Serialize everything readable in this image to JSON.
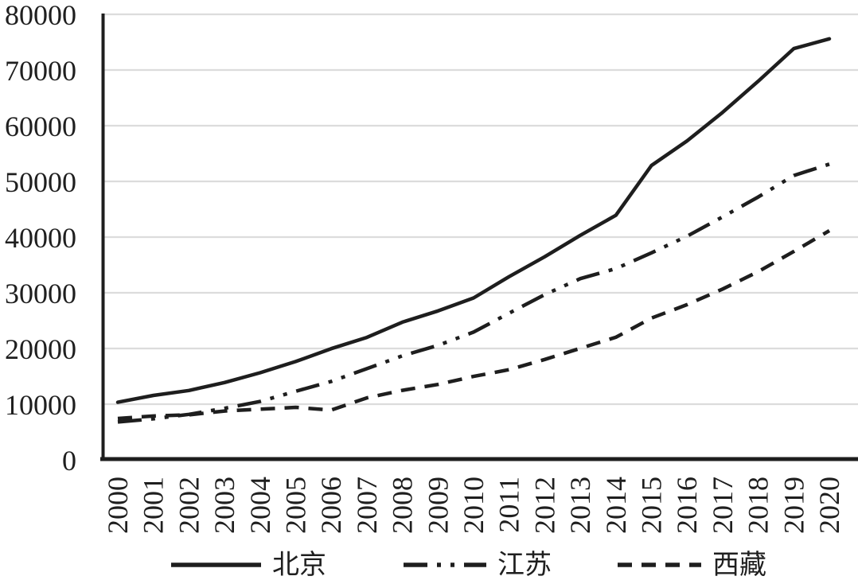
{
  "chart_data": {
    "type": "line",
    "title": "",
    "x_categories": [
      "2000",
      "2001",
      "2002",
      "2003",
      "2004",
      "2005",
      "2006",
      "2007",
      "2008",
      "2009",
      "2010",
      "2011",
      "2012",
      "2013",
      "2014",
      "2015",
      "2016",
      "2017",
      "2018",
      "2019",
      "2020"
    ],
    "y_axis": {
      "min": 0,
      "max": 80000,
      "step": 10000,
      "tick_labels": [
        "0",
        "10000",
        "20000",
        "30000",
        "40000",
        "50000",
        "60000",
        "70000",
        "80000"
      ]
    },
    "series": [
      {
        "name": "北京",
        "line_style": "solid",
        "values": [
          10350,
          11578,
          12464,
          13883,
          15638,
          17653,
          19978,
          21989,
          24725,
          26738,
          29073,
          32903,
          36469,
          40321,
          43910,
          52859,
          57275,
          62406,
          67990,
          73849,
          75602
        ]
      },
      {
        "name": "江苏",
        "line_style": "dash-dot-dot",
        "values": [
          6800,
          7375,
          8178,
          9262,
          10482,
          12319,
          14084,
          16378,
          18680,
          20552,
          22944,
          26341,
          29677,
          32538,
          34346,
          37173,
          40152,
          43622,
          47200,
          51056,
          53102
        ]
      },
      {
        "name": "西藏",
        "line_style": "dashed",
        "values": [
          7426,
          7869,
          8079,
          8766,
          9106,
          9431,
          8941,
          11132,
          12482,
          13544,
          14980,
          16196,
          18028,
          20023,
          22016,
          25457,
          27875,
          30671,
          33797,
          37410,
          41156
        ]
      }
    ],
    "legend_position": "bottom",
    "grid": "horizontal-only",
    "colors": {
      "line": "#1e1e1e",
      "gridline": "#dcdcdc",
      "axis": "#1e1e1e",
      "text": "#1f1f1f",
      "background": "#ffffff"
    }
  }
}
